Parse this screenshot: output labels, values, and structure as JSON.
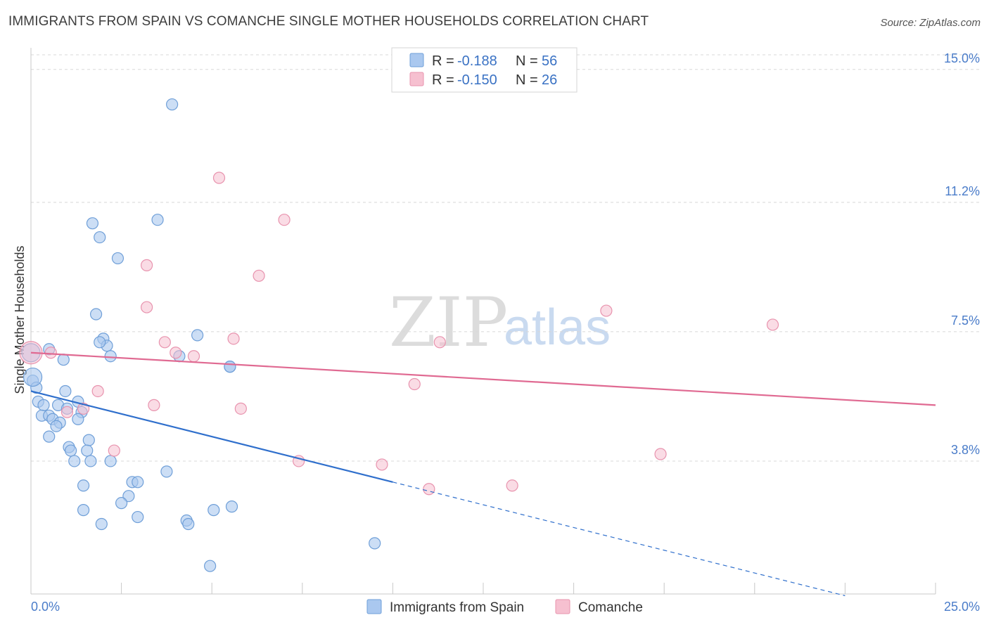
{
  "title": "IMMIGRANTS FROM SPAIN VS COMANCHE SINGLE MOTHER HOUSEHOLDS CORRELATION CHART",
  "source": "Source: ZipAtlas.com",
  "watermark": {
    "zip": "ZIP",
    "atlas": "atlas"
  },
  "colors": {
    "spain_fill": "#aac8ef",
    "spain_stroke": "#6f9fd8",
    "spain_line": "#2f6fcc",
    "comanche_fill": "#f6c0d0",
    "comanche_stroke": "#e893ae",
    "comanche_line": "#e06a92",
    "tick_text": "#4a7cc9",
    "grid": "#d8d8d8"
  },
  "legend": {
    "rows": [
      {
        "r_label": "R = ",
        "r_value": "-0.188",
        "n_label": "N = ",
        "n_value": "56"
      },
      {
        "r_label": "R = ",
        "r_value": "-0.150",
        "n_label": "N = ",
        "n_value": "26"
      }
    ]
  },
  "chart_data": {
    "type": "scatter",
    "title": "IMMIGRANTS FROM SPAIN VS COMANCHE SINGLE MOTHER HOUSEHOLDS CORRELATION CHART",
    "xlabel": "",
    "ylabel": "Single Mother Households",
    "xlim": [
      0,
      25
    ],
    "ylim": [
      0,
      15.8
    ],
    "x_tick_labels": [
      "0.0%",
      "25.0%"
    ],
    "y_ticks": [
      3.8,
      7.5,
      11.2,
      15.0
    ],
    "y_tick_labels": [
      "3.8%",
      "7.5%",
      "11.2%",
      "15.0%"
    ],
    "grid": true,
    "legend_position": "top-center",
    "series": [
      {
        "name": "Immigrants from Spain",
        "points": [
          [
            3.9,
            14.0
          ],
          [
            1.7,
            10.6
          ],
          [
            3.5,
            10.7
          ],
          [
            1.9,
            10.2
          ],
          [
            2.4,
            9.6
          ],
          [
            1.8,
            8.0
          ],
          [
            2.0,
            7.3
          ],
          [
            2.1,
            7.1
          ],
          [
            1.9,
            7.2
          ],
          [
            4.6,
            7.4
          ],
          [
            0.5,
            7.0
          ],
          [
            0.9,
            6.7
          ],
          [
            2.2,
            6.8
          ],
          [
            4.1,
            6.8
          ],
          [
            5.5,
            6.5
          ],
          [
            5.5,
            6.5
          ],
          [
            0.05,
            6.1
          ],
          [
            0.15,
            5.9
          ],
          [
            0.95,
            5.8
          ],
          [
            0.2,
            5.5
          ],
          [
            0.35,
            5.4
          ],
          [
            0.75,
            5.4
          ],
          [
            1.3,
            5.5
          ],
          [
            1.0,
            5.3
          ],
          [
            0.3,
            5.1
          ],
          [
            0.5,
            5.1
          ],
          [
            0.6,
            5.0
          ],
          [
            1.4,
            5.2
          ],
          [
            1.3,
            5.0
          ],
          [
            0.8,
            4.9
          ],
          [
            0.7,
            4.8
          ],
          [
            0.5,
            4.5
          ],
          [
            1.6,
            4.4
          ],
          [
            1.05,
            4.2
          ],
          [
            1.1,
            4.1
          ],
          [
            1.55,
            4.1
          ],
          [
            1.2,
            3.8
          ],
          [
            1.65,
            3.8
          ],
          [
            2.2,
            3.8
          ],
          [
            3.75,
            3.5
          ],
          [
            2.8,
            3.2
          ],
          [
            2.95,
            3.2
          ],
          [
            1.45,
            3.1
          ],
          [
            2.7,
            2.8
          ],
          [
            2.5,
            2.6
          ],
          [
            1.45,
            2.4
          ],
          [
            2.95,
            2.2
          ],
          [
            5.55,
            2.5
          ],
          [
            5.05,
            2.4
          ],
          [
            4.3,
            2.1
          ],
          [
            4.35,
            2.0
          ],
          [
            1.95,
            2.0
          ],
          [
            9.5,
            1.45
          ],
          [
            4.95,
            0.8
          ],
          [
            0.0,
            6.9
          ],
          [
            0.05,
            6.2
          ]
        ]
      },
      {
        "name": "Comanche",
        "points": [
          [
            5.2,
            11.9
          ],
          [
            7.0,
            10.7
          ],
          [
            3.2,
            9.4
          ],
          [
            6.3,
            9.1
          ],
          [
            3.2,
            8.2
          ],
          [
            15.9,
            8.1
          ],
          [
            20.5,
            7.7
          ],
          [
            5.6,
            7.3
          ],
          [
            3.7,
            7.2
          ],
          [
            11.3,
            7.2
          ],
          [
            0.55,
            6.9
          ],
          [
            4.0,
            6.9
          ],
          [
            4.5,
            6.8
          ],
          [
            10.6,
            6.0
          ],
          [
            1.85,
            5.8
          ],
          [
            3.4,
            5.4
          ],
          [
            5.8,
            5.3
          ],
          [
            1.45,
            5.3
          ],
          [
            1.0,
            5.2
          ],
          [
            2.3,
            4.1
          ],
          [
            17.4,
            4.0
          ],
          [
            7.4,
            3.8
          ],
          [
            9.7,
            3.7
          ],
          [
            13.3,
            3.1
          ],
          [
            11.0,
            3.0
          ],
          [
            0.0,
            6.9
          ]
        ]
      }
    ],
    "trendlines": [
      {
        "series": "Immigrants from Spain",
        "x": [
          0,
          10
        ],
        "y": [
          5.8,
          3.2
        ],
        "dashed_extension_to_x": 22.5
      },
      {
        "series": "Comanche",
        "x": [
          0,
          25
        ],
        "y": [
          6.9,
          5.4
        ]
      }
    ]
  }
}
